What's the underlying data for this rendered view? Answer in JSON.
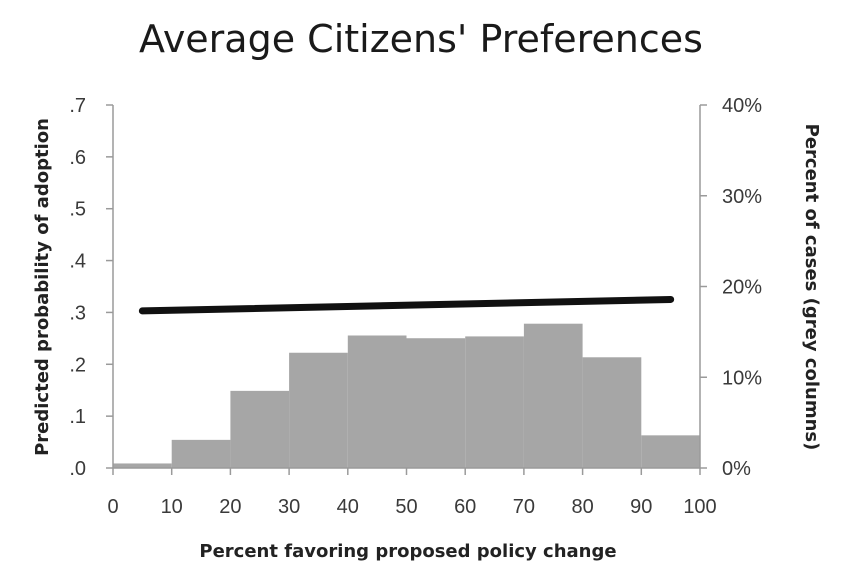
{
  "chart_data": {
    "type": "bar",
    "title": "Average Citizens' Preferences",
    "xlabel": "Percent favoring proposed policy change",
    "ylabel": "Predicted probability of adoption",
    "y2label": "Percent of cases (grey columns)",
    "xlim": [
      0,
      100
    ],
    "ylim": [
      0,
      0.7
    ],
    "y2lim": [
      0,
      40
    ],
    "x_ticks": [
      "0",
      "10",
      "20",
      "30",
      "40",
      "50",
      "60",
      "70",
      "80",
      "90",
      "100"
    ],
    "y_ticks": [
      ".0",
      ".1",
      ".2",
      ".3",
      ".4",
      ".5",
      ".6",
      ".7"
    ],
    "y2_ticks": [
      "0%",
      "10%",
      "20%",
      "30%",
      "40%"
    ],
    "bins": [
      {
        "from": 0,
        "to": 10,
        "value": 0.5
      },
      {
        "from": 10,
        "to": 20,
        "value": 3.1
      },
      {
        "from": 20,
        "to": 30,
        "value": 8.5
      },
      {
        "from": 30,
        "to": 40,
        "value": 12.7
      },
      {
        "from": 40,
        "to": 50,
        "value": 14.6
      },
      {
        "from": 50,
        "to": 60,
        "value": 14.3
      },
      {
        "from": 60,
        "to": 70,
        "value": 14.5
      },
      {
        "from": 70,
        "to": 80,
        "value": 15.9
      },
      {
        "from": 80,
        "to": 90,
        "value": 12.2
      },
      {
        "from": 90,
        "to": 100,
        "value": 3.6
      }
    ],
    "line": {
      "x": [
        5,
        95
      ],
      "y": [
        0.303,
        0.325
      ]
    },
    "colors": {
      "bars": "#a6a6a6",
      "line": "#111111",
      "axis": "#9a9a9a"
    },
    "grid": false
  }
}
